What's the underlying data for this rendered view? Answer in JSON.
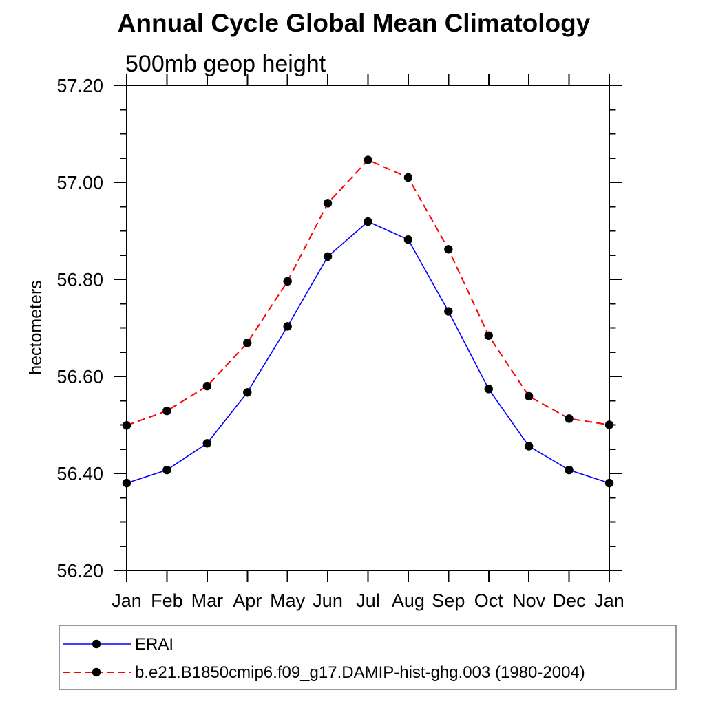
{
  "page": {
    "background": "#ffffff"
  },
  "chart_data": {
    "type": "line",
    "title": "Annual Cycle Global Mean Climatology",
    "subtitle": "500mb geop height",
    "ylabel": "hectometers",
    "categories": [
      "Jan",
      "Feb",
      "Mar",
      "Apr",
      "May",
      "Jun",
      "Jul",
      "Aug",
      "Sep",
      "Oct",
      "Nov",
      "Dec",
      "Jan"
    ],
    "ylim": [
      56.2,
      57.2
    ],
    "ytick_major_step": 0.2,
    "ytick_minor_step": 0.05,
    "ytick_labels": [
      "56.20",
      "56.40",
      "56.60",
      "56.80",
      "57.00",
      "57.20"
    ],
    "grid": false,
    "legend_position": "bottom-left-box",
    "axis_color": "#000000",
    "marker_color": "#000000",
    "series": [
      {
        "name": "ERAI",
        "color": "#0000ff",
        "line_style": "solid",
        "marker": "filled-circle",
        "values": [
          56.38,
          56.407,
          56.462,
          56.567,
          56.703,
          56.847,
          56.919,
          56.882,
          56.734,
          56.574,
          56.456,
          56.407,
          56.38
        ]
      },
      {
        "name": "b.e21.B1850cmip6.f09_g17.DAMIP-hist-ghg.003 (1980-2004)",
        "color": "#ff0000",
        "line_style": "dashed",
        "marker": "filled-circle",
        "values": [
          56.499,
          56.529,
          56.58,
          56.669,
          56.796,
          56.957,
          57.046,
          57.01,
          56.862,
          56.684,
          56.559,
          56.513,
          56.5
        ]
      }
    ]
  }
}
